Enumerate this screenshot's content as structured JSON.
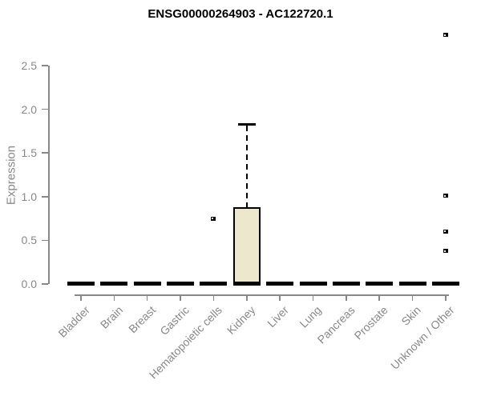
{
  "title": "ENSG00000264903 - AC122720.1",
  "chart_data": {
    "type": "boxplot",
    "title": "ENSG00000264903 - AC122720.1",
    "xlabel": "",
    "ylabel": "Expression",
    "ylim": [
      0,
      2.5
    ],
    "yticks": [
      0,
      0.5,
      1,
      1.5,
      2,
      2.5
    ],
    "ytick_labels": [
      "0.0",
      "0.5",
      "1.0",
      "1.5",
      "2.0",
      "2.5"
    ],
    "grid": false,
    "legend": false,
    "colors": {
      "background": "#FFFFFF",
      "box_fill": "#ECE7CD",
      "box_border": "#000000",
      "median": "#000000",
      "whisker": "#000000",
      "outlier": "#000000",
      "axis": "#898989",
      "tick_text": "#898989",
      "title_text": "#000000"
    },
    "categories": [
      "Bladder",
      "Brain",
      "Breast",
      "Gastric",
      "Hematopoietic cells",
      "Kidney",
      "Liver",
      "Lung",
      "Pancreas",
      "Prostate",
      "Skin",
      "Unknown / Other"
    ],
    "series": [
      {
        "category": "Bladder",
        "whisker_low": 0,
        "q1": 0,
        "median": 0,
        "q3": 0,
        "whisker_high": 0,
        "outliers": []
      },
      {
        "category": "Brain",
        "whisker_low": 0,
        "q1": 0,
        "median": 0,
        "q3": 0,
        "whisker_high": 0,
        "outliers": []
      },
      {
        "category": "Breast",
        "whisker_low": 0,
        "q1": 0,
        "median": 0,
        "q3": 0,
        "whisker_high": 0,
        "outliers": []
      },
      {
        "category": "Gastric",
        "whisker_low": 0,
        "q1": 0,
        "median": 0,
        "q3": 0,
        "whisker_high": 0,
        "outliers": []
      },
      {
        "category": "Hematopoietic cells",
        "whisker_low": 0,
        "q1": 0,
        "median": 0,
        "q3": 0,
        "whisker_high": 0,
        "outliers": [
          0.75
        ]
      },
      {
        "category": "Kidney",
        "whisker_low": 0,
        "q1": 0,
        "median": 0,
        "q3": 0.88,
        "whisker_high": 1.83,
        "outliers": []
      },
      {
        "category": "Liver",
        "whisker_low": 0,
        "q1": 0,
        "median": 0,
        "q3": 0,
        "whisker_high": 0,
        "outliers": []
      },
      {
        "category": "Lung",
        "whisker_low": 0,
        "q1": 0,
        "median": 0,
        "q3": 0,
        "whisker_high": 0,
        "outliers": []
      },
      {
        "category": "Pancreas",
        "whisker_low": 0,
        "q1": 0,
        "median": 0,
        "q3": 0,
        "whisker_high": 0,
        "outliers": []
      },
      {
        "category": "Prostate",
        "whisker_low": 0,
        "q1": 0,
        "median": 0,
        "q3": 0,
        "whisker_high": 0,
        "outliers": []
      },
      {
        "category": "Skin",
        "whisker_low": 0,
        "q1": 0,
        "median": 0,
        "q3": 0,
        "whisker_high": 0,
        "outliers": []
      },
      {
        "category": "Unknown / Other",
        "whisker_low": 0,
        "q1": 0,
        "median": 0,
        "q3": 0,
        "whisker_high": 0,
        "outliers": [
          0.38,
          0.6,
          1.01,
          2.85
        ]
      }
    ]
  }
}
